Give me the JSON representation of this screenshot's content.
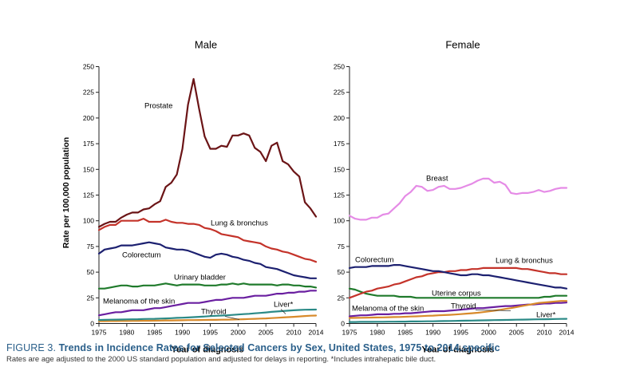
{
  "caption": {
    "label": "FIGURE 3.",
    "title": "Trends in Incidence Rates for Selected Cancers by Sex, United States, 1975 to 2014.specific",
    "note": "Rates are age adjusted to the 2000 US standard population and adjusted for delays in reporting. *Includes intrahepatic bile duct."
  },
  "chart_data": [
    {
      "type": "line",
      "title": "Male",
      "xlabel": "Year of diagnosis",
      "ylabel": "Rate per 100,000 population",
      "xlim": [
        1975,
        2014
      ],
      "ylim": [
        0,
        250
      ],
      "xticks": [
        1975,
        1980,
        1985,
        1990,
        1995,
        2000,
        2005,
        2010,
        2014
      ],
      "yticks": [
        0,
        25,
        50,
        75,
        100,
        125,
        150,
        175,
        200,
        225,
        250
      ],
      "grid": false,
      "x": [
        1975,
        1976,
        1977,
        1978,
        1979,
        1980,
        1981,
        1982,
        1983,
        1984,
        1985,
        1986,
        1987,
        1988,
        1989,
        1990,
        1991,
        1992,
        1993,
        1994,
        1995,
        1996,
        1997,
        1998,
        1999,
        2000,
        2001,
        2002,
        2003,
        2004,
        2005,
        2006,
        2007,
        2008,
        2009,
        2010,
        2011,
        2012,
        2013,
        2014
      ],
      "series": [
        {
          "name": "Prostate",
          "color": "#6b1416",
          "values": [
            94,
            97,
            99,
            99,
            103,
            106,
            108,
            108,
            111,
            112,
            116,
            119,
            133,
            137,
            145,
            170,
            213,
            238,
            209,
            182,
            170,
            170,
            173,
            172,
            183,
            183,
            185,
            183,
            171,
            167,
            158,
            173,
            176,
            158,
            155,
            148,
            143,
            118,
            112,
            104
          ]
        },
        {
          "name": "Lung & bronchus",
          "color": "#c4332a",
          "values": [
            91,
            94,
            96,
            96,
            100,
            100,
            100,
            100,
            102,
            99,
            99,
            99,
            101,
            99,
            98,
            98,
            97,
            97,
            96,
            93,
            92,
            90,
            87,
            86,
            85,
            84,
            81,
            80,
            79,
            78,
            75,
            73,
            72,
            70,
            69,
            67,
            65,
            63,
            62,
            60
          ]
        },
        {
          "name": "Colorectum",
          "color": "#1c2070",
          "values": [
            68,
            72,
            73,
            74,
            76,
            76,
            76,
            77,
            78,
            79,
            78,
            77,
            74,
            73,
            72,
            72,
            71,
            69,
            67,
            65,
            64,
            67,
            68,
            67,
            65,
            64,
            62,
            61,
            59,
            58,
            55,
            54,
            53,
            51,
            49,
            47,
            46,
            45,
            44,
            44
          ]
        },
        {
          "name": "Urinary bladder",
          "color": "#1f7a2b",
          "values": [
            34,
            34,
            35,
            36,
            37,
            37,
            36,
            36,
            37,
            37,
            37,
            38,
            39,
            38,
            37,
            38,
            38,
            38,
            38,
            37,
            37,
            37,
            38,
            38,
            39,
            38,
            39,
            38,
            38,
            38,
            38,
            38,
            37,
            38,
            38,
            37,
            37,
            36,
            36,
            35
          ]
        },
        {
          "name": "Melanoma of the skin",
          "color": "#6a1fa0",
          "values": [
            8,
            9,
            10,
            11,
            11,
            12,
            13,
            13,
            13,
            14,
            15,
            15,
            16,
            17,
            18,
            19,
            20,
            20,
            20,
            21,
            22,
            23,
            23,
            24,
            25,
            25,
            25,
            26,
            27,
            27,
            27,
            28,
            29,
            29,
            30,
            30,
            31,
            31,
            32,
            32
          ]
        },
        {
          "name": "Liver*",
          "color": "#2b8a87",
          "values": [
            3.5,
            3.6,
            3.7,
            3.8,
            3.9,
            4,
            4.1,
            4.2,
            4.4,
            4.5,
            4.6,
            4.8,
            5,
            5.2,
            5.5,
            5.7,
            5.9,
            6.2,
            6.5,
            6.8,
            7.2,
            7.5,
            7.8,
            8,
            8.4,
            8.8,
            9.2,
            9.5,
            9.9,
            10.3,
            10.8,
            11.3,
            11.7,
            12.1,
            12.5,
            12.9,
            13.2,
            13.4,
            13.5,
            13.6
          ]
        },
        {
          "name": "Thyroid",
          "color": "#d88a2b",
          "values": [
            2.3,
            2.3,
            2.4,
            2.4,
            2.5,
            2.5,
            2.6,
            2.6,
            2.7,
            2.7,
            2.8,
            2.9,
            3,
            3,
            3.1,
            3.2,
            3.3,
            3.3,
            3.4,
            3.5,
            3.6,
            3.6,
            3.7,
            3.8,
            3.9,
            4,
            4.2,
            4.4,
            4.6,
            4.8,
            5,
            5.3,
            5.6,
            5.9,
            6.2,
            6.5,
            6.9,
            7.3,
            7.6,
            7.8
          ]
        }
      ],
      "labels": {
        "prostate": "Prostate",
        "lung": "Lung & bronchus",
        "colorectum": "Colorectum",
        "bladder": "Urinary bladder",
        "melanoma": "Melanoma of the skin",
        "liver": "Liver*",
        "thyroid": "Thyroid"
      }
    },
    {
      "type": "line",
      "title": "Female",
      "xlabel": "Year of diagnosis",
      "xlim": [
        1975,
        2014
      ],
      "ylim": [
        0,
        250
      ],
      "xticks": [
        1975,
        1980,
        1985,
        1990,
        1995,
        2000,
        2005,
        2010,
        2014
      ],
      "yticks": [
        0,
        25,
        50,
        75,
        100,
        125,
        150,
        175,
        200,
        225,
        250
      ],
      "grid": false,
      "x": [
        1975,
        1976,
        1977,
        1978,
        1979,
        1980,
        1981,
        1982,
        1983,
        1984,
        1985,
        1986,
        1987,
        1988,
        1989,
        1990,
        1991,
        1992,
        1993,
        1994,
        1995,
        1996,
        1997,
        1998,
        1999,
        2000,
        2001,
        2002,
        2003,
        2004,
        2005,
        2006,
        2007,
        2008,
        2009,
        2010,
        2011,
        2012,
        2013,
        2014
      ],
      "series": [
        {
          "name": "Breast",
          "color": "#e58be6",
          "values": [
            105,
            102,
            101,
            101,
            103,
            103,
            106,
            107,
            112,
            117,
            124,
            128,
            134,
            133,
            129,
            130,
            133,
            134,
            131,
            131,
            132,
            134,
            136,
            139,
            141,
            141,
            137,
            138,
            135,
            127,
            126,
            127,
            127,
            128,
            130,
            128,
            129,
            131,
            132,
            132
          ]
        },
        {
          "name": "Colorectum",
          "color": "#1c2070",
          "values": [
            54,
            55,
            55,
            55,
            56,
            56,
            56,
            56,
            57,
            57,
            56,
            55,
            54,
            53,
            52,
            51,
            51,
            50,
            49,
            48,
            47,
            47,
            48,
            48,
            47,
            47,
            46,
            45,
            44,
            43,
            42,
            41,
            40,
            39,
            38,
            37,
            36,
            35,
            35,
            34
          ]
        },
        {
          "name": "Lung & bronchus",
          "color": "#c4332a",
          "values": [
            25,
            27,
            29,
            31,
            32,
            34,
            35,
            36,
            38,
            39,
            41,
            43,
            45,
            46,
            48,
            49,
            50,
            50,
            51,
            51,
            52,
            52,
            53,
            53,
            54,
            54,
            54,
            54,
            54,
            54,
            54,
            53,
            53,
            52,
            51,
            50,
            49,
            49,
            48,
            48
          ]
        },
        {
          "name": "Uterine corpus",
          "color": "#1f7a2b",
          "values": [
            34,
            33,
            31,
            29,
            28,
            27,
            27,
            27,
            27,
            26,
            26,
            26,
            25,
            25,
            25,
            25,
            25,
            25,
            25,
            25,
            25,
            25,
            25,
            25,
            25,
            25,
            25,
            25,
            25,
            25,
            25,
            25,
            25,
            25,
            25,
            26,
            26,
            27,
            27,
            27
          ]
        },
        {
          "name": "Thyroid",
          "color": "#d88a2b",
          "values": [
            5.4,
            5.5,
            5.6,
            5.7,
            5.8,
            5.9,
            6,
            6.1,
            6.3,
            6.4,
            6.6,
            6.8,
            7,
            7.2,
            7.5,
            7.7,
            8,
            8.2,
            8.5,
            8.8,
            9.2,
            9.6,
            10,
            10.5,
            11.1,
            11.8,
            12.5,
            13.3,
            14.2,
            15,
            16,
            17,
            18,
            19,
            20,
            20.5,
            21,
            21.5,
            22,
            22
          ]
        },
        {
          "name": "Melanoma of the skin",
          "color": "#6a1fa0",
          "values": [
            7,
            7.5,
            8,
            8,
            8.5,
            9,
            9,
            9,
            9.5,
            9.5,
            10,
            10,
            10.5,
            11,
            11.5,
            12,
            12,
            12,
            12.5,
            13,
            13.5,
            14,
            14.5,
            15,
            15,
            15.5,
            16,
            16.5,
            17,
            17,
            17.5,
            18,
            18.5,
            18.5,
            19,
            19.5,
            19.5,
            20,
            20,
            20.5
          ]
        },
        {
          "name": "Liver*",
          "color": "#2b8a87",
          "values": [
            1.5,
            1.5,
            1.6,
            1.6,
            1.6,
            1.7,
            1.7,
            1.8,
            1.8,
            1.9,
            1.9,
            2,
            2,
            2.1,
            2.2,
            2.2,
            2.3,
            2.4,
            2.5,
            2.6,
            2.7,
            2.8,
            2.9,
            3,
            3.1,
            3.2,
            3.3,
            3.4,
            3.5,
            3.6,
            3.7,
            3.8,
            3.9,
            4,
            4.1,
            4.2,
            4.3,
            4.4,
            4.5,
            4.6
          ]
        }
      ],
      "labels": {
        "breast": "Breast",
        "colorectum": "Colorectum",
        "lung": "Lung & bronchus",
        "uterine": "Uterine corpus",
        "thyroid": "Thyroid",
        "melanoma": "Melanoma of the skin",
        "liver": "Liver*"
      }
    }
  ]
}
